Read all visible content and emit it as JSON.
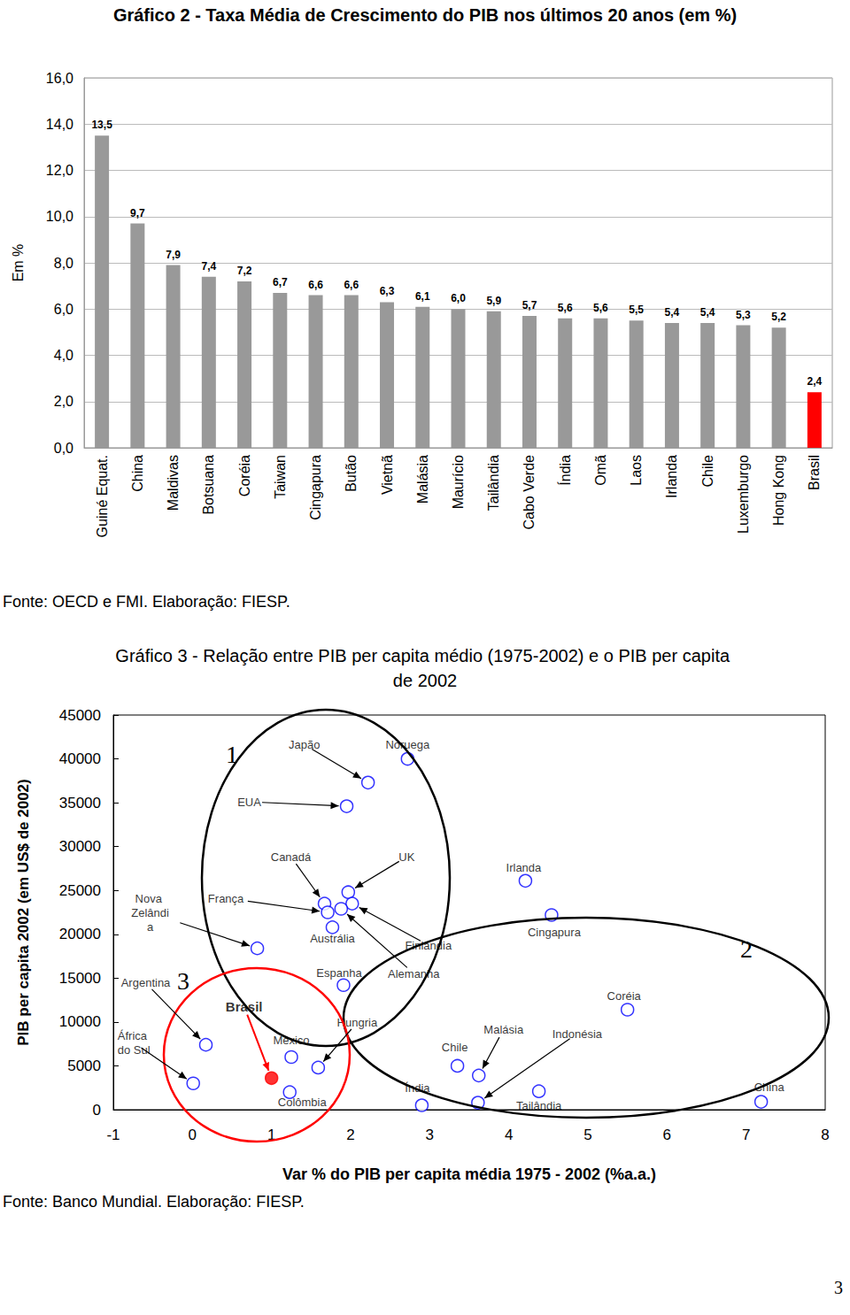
{
  "chart_data": [
    {
      "type": "bar",
      "title": "Gráfico 2 - Taxa Média de Crescimento do PIB nos últimos 20 anos (em %)",
      "y_label": "Em %",
      "categories": [
        "Guiné Equat.",
        "China",
        "Maldivas",
        "Botsuana",
        "Coréia",
        "Taiwan",
        "Cingapura",
        "Butão",
        "Vietnã",
        "Malásia",
        "Maurício",
        "Tailândia",
        "Cabo Verde",
        "Índia",
        "Omã",
        "Laos",
        "Irlanda",
        "Chile",
        "Luxemburgo",
        "Hong Kong",
        "Brasil"
      ],
      "values": [
        13.5,
        9.7,
        7.9,
        7.4,
        7.2,
        6.7,
        6.6,
        6.6,
        6.3,
        6.1,
        6.0,
        5.9,
        5.7,
        5.6,
        5.6,
        5.5,
        5.4,
        5.4,
        5.3,
        5.2,
        2.4
      ],
      "value_labels": [
        "13,5",
        "9,7",
        "7,9",
        "7,4",
        "7,2",
        "6,7",
        "6,6",
        "6,6",
        "6,3",
        "6,1",
        "6,0",
        "5,9",
        "5,7",
        "5,6",
        "5,6",
        "5,5",
        "5,4",
        "5,4",
        "5,3",
        "5,2",
        "2,4"
      ],
      "colors": [
        "#999999",
        "#999999",
        "#999999",
        "#999999",
        "#999999",
        "#999999",
        "#999999",
        "#999999",
        "#999999",
        "#999999",
        "#999999",
        "#999999",
        "#999999",
        "#999999",
        "#999999",
        "#999999",
        "#999999",
        "#999999",
        "#999999",
        "#999999",
        "#ff0000"
      ],
      "ylim": [
        0,
        16
      ],
      "yticks": [
        {
          "value": 0,
          "label": "0,0"
        },
        {
          "value": 2,
          "label": "2,0"
        },
        {
          "value": 4,
          "label": "4,0"
        },
        {
          "value": 6,
          "label": "6,0"
        },
        {
          "value": 8,
          "label": "8,0"
        },
        {
          "value": 10,
          "label": "10,0"
        },
        {
          "value": 12,
          "label": "12,0"
        },
        {
          "value": 14,
          "label": "14,0"
        },
        {
          "value": 16,
          "label": "16,0"
        }
      ],
      "grid": true,
      "data_labels": true,
      "source": "Fonte: OECD e FMI. Elaboração: FIESP."
    },
    {
      "type": "scatter",
      "title": "Gráfico 3 - Relação entre PIB per capita médio (1975-2002) e o PIB per capita de 2002",
      "x_label": "Var % do PIB per capita média 1975 - 2002 (%a.a.)",
      "y_label": "PIB per capita 2002 (em US$ de 2002)",
      "series": [
        {
          "marker": "circle-open",
          "color": "#0000ff",
          "labels": [
            "Japão",
            "Noruega",
            "EUA",
            "Canadá",
            "França",
            "UK",
            "Finlândia",
            "Alemanha",
            "Austrália",
            "Nova Zelândia",
            "Espanha",
            "Argentina",
            "África do Sul",
            "México",
            "Hungria",
            "Colômbia",
            "Irlanda",
            "Cingapura",
            "Coréia",
            "Chile",
            "Malásia",
            "Indonésia",
            "Índia",
            "Tailândia",
            "China"
          ],
          "x": [
            2.22,
            2.72,
            1.95,
            1.67,
            1.71,
            1.97,
            2.02,
            1.88,
            1.77,
            0.82,
            1.91,
            0.17,
            0.01,
            1.25,
            1.59,
            1.23,
            4.21,
            4.54,
            5.5,
            3.35,
            3.62,
            3.61,
            2.9,
            4.38,
            7.19
          ],
          "values": [
            37300,
            40000,
            34600,
            23500,
            22500,
            24800,
            23500,
            22900,
            20800,
            18400,
            14200,
            7400,
            3000,
            6000,
            4800,
            2000,
            26100,
            22200,
            11400,
            5000,
            3900,
            800,
            500,
            2100,
            900
          ]
        },
        {
          "marker": "circle",
          "color": "#ff0000",
          "labels": [
            "Brasil"
          ],
          "x": [
            1.0
          ],
          "values": [
            3600
          ]
        }
      ],
      "xlim": [
        -1,
        8
      ],
      "xticks": [
        -1,
        0,
        1,
        2,
        3,
        4,
        5,
        6,
        7,
        8
      ],
      "ylim": [
        0,
        45000
      ],
      "yticks": [
        0,
        5000,
        10000,
        15000,
        20000,
        25000,
        30000,
        35000,
        40000,
        45000
      ],
      "grid": false,
      "annotations": [
        "1",
        "2",
        "3"
      ],
      "source": "Fonte: Banco Mundial. Elaboração: FIESP."
    }
  ],
  "page_number": "3"
}
